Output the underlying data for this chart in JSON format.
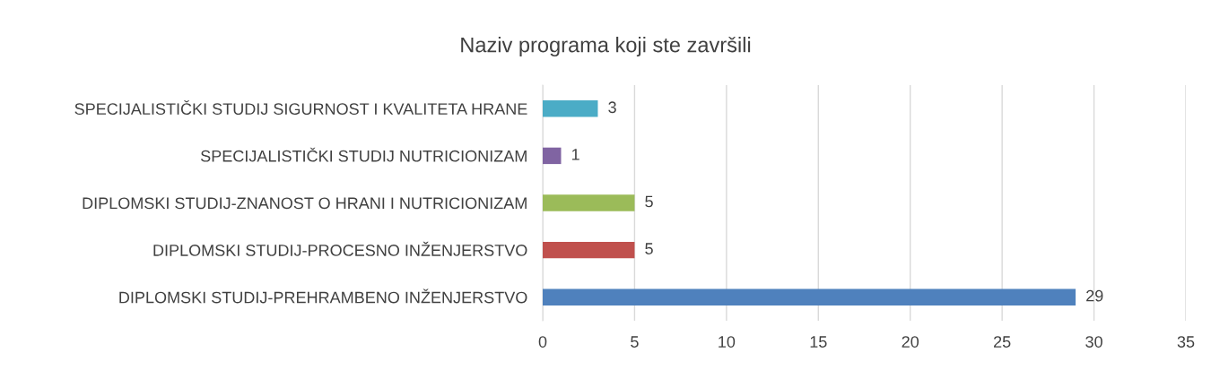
{
  "chart_data": {
    "type": "bar",
    "orientation": "horizontal",
    "title": "Naziv programa koji ste završili",
    "categories": [
      "SPECIJALISTIČKI STUDIJ SIGURNOST I KVALITETA HRANE",
      "SPECIJALISTIČKI STUDIJ NUTRICIONIZAM",
      "DIPLOMSKI STUDIJ-ZNANOST O HRANI I NUTRICIONIZAM",
      "DIPLOMSKI STUDIJ-PROCESNO INŽENJERSTVO",
      "DIPLOMSKI STUDIJ-PREHRAMBENO INŽENJERSTVO"
    ],
    "values": [
      3,
      1,
      5,
      5,
      29
    ],
    "colors": [
      "#4bacc6",
      "#8064a2",
      "#9bbb59",
      "#c0504d",
      "#4f81bd"
    ],
    "xlim": [
      0,
      35
    ],
    "xticks": [
      0,
      5,
      10,
      15,
      20,
      25,
      30,
      35
    ],
    "grid": "x",
    "data_labels": true,
    "legend": false
  }
}
